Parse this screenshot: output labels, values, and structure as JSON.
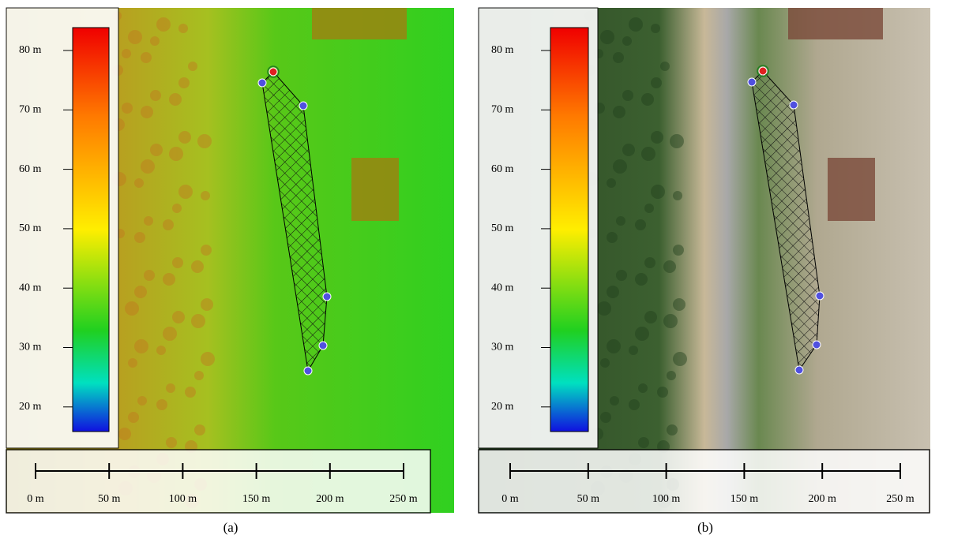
{
  "panels": [
    {
      "legend_labels": [
        "80 m",
        "70 m",
        "60 m",
        "50 m",
        "40 m",
        "30 m",
        "20 m"
      ],
      "scale_labels": [
        "0 m",
        "50 m",
        "100 m",
        "150 m",
        "200 m",
        "250 m"
      ],
      "caption": "(a)"
    },
    {
      "legend_labels": [
        "80 m",
        "70 m",
        "60 m",
        "50 m",
        "40 m",
        "30 m",
        "20 m"
      ],
      "scale_labels": [
        "0 m",
        "50 m",
        "100 m",
        "150 m",
        "200 m",
        "250 m"
      ],
      "caption": "(b)"
    }
  ]
}
